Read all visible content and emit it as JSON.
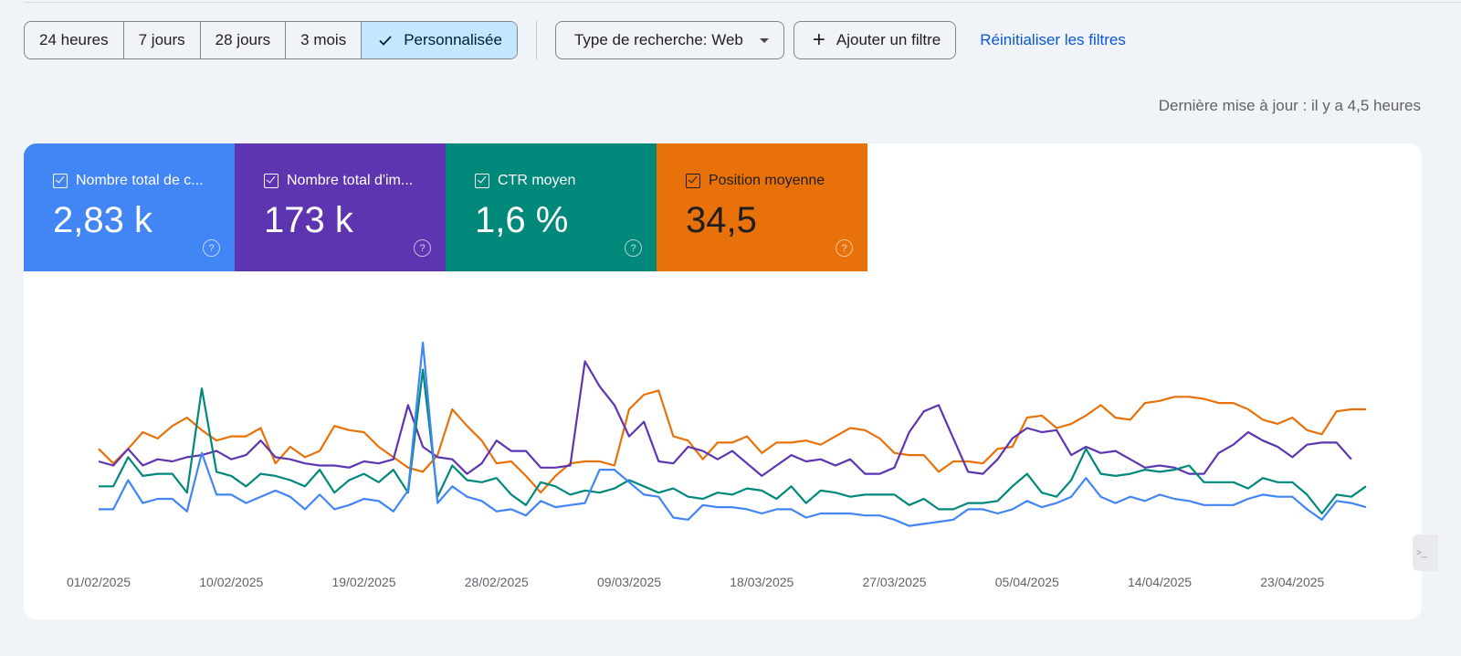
{
  "filters": {
    "date_ranges": [
      {
        "label": "24 heures",
        "active": false
      },
      {
        "label": "7 jours",
        "active": false
      },
      {
        "label": "28 jours",
        "active": false
      },
      {
        "label": "3 mois",
        "active": false
      },
      {
        "label": "Personnalisée",
        "active": true
      }
    ],
    "search_type_label": "Type de recherche: Web",
    "add_filter_label": "Ajouter un filtre",
    "reset_label": "Réinitialiser les filtres"
  },
  "last_update": "Dernière mise à jour : il y a 4,5 heures",
  "metrics": [
    {
      "label": "Nombre total de c...",
      "value": "2,83 k",
      "color": "#4285f4"
    },
    {
      "label": "Nombre total d'im...",
      "value": "173 k",
      "color": "#5e35b1"
    },
    {
      "label": "CTR moyen",
      "value": "1,6 %",
      "color": "#00897b"
    },
    {
      "label": "Position moyenne",
      "value": "34,5",
      "color": "#e8710a"
    }
  ],
  "chart_data": {
    "type": "line",
    "x_tick_labels": [
      "01/02/2025",
      "10/02/2025",
      "19/02/2025",
      "28/02/2025",
      "09/03/2025",
      "18/03/2025",
      "27/03/2025",
      "05/04/2025",
      "14/04/2025",
      "23/04/2025"
    ],
    "y_unit": "relative (0 = bottom, 1 = top of plot)",
    "series": [
      {
        "metric": "Position moyenne",
        "color": "#e8710a",
        "values": [
          0.49,
          0.42,
          0.49,
          0.57,
          0.54,
          0.6,
          0.64,
          0.58,
          0.53,
          0.55,
          0.55,
          0.59,
          0.42,
          0.5,
          0.45,
          0.48,
          0.6,
          0.58,
          0.57,
          0.5,
          0.45,
          0.4,
          0.38,
          0.46,
          0.68,
          0.6,
          0.53,
          0.42,
          0.43,
          0.36,
          0.28,
          0.36,
          0.42,
          0.43,
          0.43,
          0.41,
          0.68,
          0.75,
          0.77,
          0.55,
          0.53,
          0.44,
          0.52,
          0.52,
          0.55,
          0.47,
          0.52,
          0.52,
          0.53,
          0.51,
          0.55,
          0.59,
          0.58,
          0.54,
          0.47,
          0.46,
          0.46,
          0.38,
          0.43,
          0.43,
          0.42,
          0.49,
          0.5,
          0.64,
          0.65,
          0.59,
          0.61,
          0.65,
          0.7,
          0.64,
          0.63,
          0.71,
          0.72,
          0.74,
          0.74,
          0.73,
          0.71,
          0.71,
          0.68,
          0.63,
          0.61,
          0.64,
          0.58,
          0.56,
          0.67,
          0.68,
          0.68
        ]
      },
      {
        "metric": "Nombre total d'impressions",
        "color": "#5e35b1",
        "values": [
          0.43,
          0.41,
          0.49,
          0.41,
          0.44,
          0.43,
          0.45,
          0.46,
          0.48,
          0.44,
          0.46,
          0.53,
          0.45,
          0.44,
          0.42,
          0.41,
          0.41,
          0.4,
          0.43,
          0.42,
          0.44,
          0.7,
          0.5,
          0.45,
          0.44,
          0.37,
          0.42,
          0.53,
          0.48,
          0.48,
          0.4,
          0.4,
          0.41,
          0.91,
          0.79,
          0.7,
          0.55,
          0.62,
          0.43,
          0.42,
          0.5,
          0.48,
          0.44,
          0.48,
          0.42,
          0.36,
          0.41,
          0.46,
          0.43,
          0.44,
          0.41,
          0.44,
          0.37,
          0.37,
          0.4,
          0.57,
          0.67,
          0.7,
          0.54,
          0.38,
          0.37,
          0.44,
          0.54,
          0.59,
          0.57,
          0.58,
          0.46,
          0.5,
          0.47,
          0.48,
          0.44,
          0.4,
          0.41,
          0.4,
          0.37,
          0.37,
          0.47,
          0.51,
          0.57,
          0.53,
          0.5,
          0.45,
          0.51,
          0.52,
          0.52,
          0.44
        ]
      },
      {
        "metric": "CTR moyen",
        "color": "#00897b",
        "values": [
          0.31,
          0.31,
          0.45,
          0.36,
          0.37,
          0.37,
          0.28,
          0.78,
          0.38,
          0.36,
          0.31,
          0.37,
          0.36,
          0.34,
          0.31,
          0.39,
          0.28,
          0.34,
          0.37,
          0.33,
          0.39,
          0.28,
          0.87,
          0.26,
          0.41,
          0.34,
          0.33,
          0.35,
          0.27,
          0.22,
          0.33,
          0.31,
          0.27,
          0.29,
          0.28,
          0.3,
          0.34,
          0.31,
          0.28,
          0.3,
          0.26,
          0.25,
          0.28,
          0.27,
          0.3,
          0.29,
          0.25,
          0.31,
          0.23,
          0.29,
          0.28,
          0.26,
          0.27,
          0.27,
          0.27,
          0.22,
          0.25,
          0.2,
          0.2,
          0.23,
          0.23,
          0.24,
          0.31,
          0.37,
          0.28,
          0.26,
          0.34,
          0.49,
          0.37,
          0.36,
          0.37,
          0.39,
          0.38,
          0.39,
          0.41,
          0.33,
          0.33,
          0.33,
          0.3,
          0.35,
          0.33,
          0.33,
          0.27,
          0.18,
          0.27,
          0.26,
          0.31
        ]
      },
      {
        "metric": "Nombre total de clics",
        "color": "#4285f4",
        "values": [
          0.2,
          0.2,
          0.34,
          0.23,
          0.25,
          0.25,
          0.19,
          0.47,
          0.27,
          0.27,
          0.23,
          0.26,
          0.29,
          0.26,
          0.2,
          0.27,
          0.2,
          0.22,
          0.25,
          0.24,
          0.19,
          0.29,
          1.0,
          0.23,
          0.31,
          0.26,
          0.24,
          0.19,
          0.2,
          0.17,
          0.24,
          0.21,
          0.22,
          0.23,
          0.39,
          0.39,
          0.33,
          0.27,
          0.26,
          0.16,
          0.15,
          0.22,
          0.21,
          0.21,
          0.2,
          0.18,
          0.2,
          0.2,
          0.16,
          0.18,
          0.18,
          0.18,
          0.17,
          0.17,
          0.15,
          0.12,
          0.13,
          0.14,
          0.15,
          0.2,
          0.2,
          0.18,
          0.2,
          0.24,
          0.21,
          0.23,
          0.26,
          0.35,
          0.26,
          0.23,
          0.26,
          0.24,
          0.27,
          0.25,
          0.24,
          0.22,
          0.22,
          0.22,
          0.25,
          0.27,
          0.26,
          0.26,
          0.2,
          0.15,
          0.24,
          0.23,
          0.21
        ]
      }
    ]
  }
}
